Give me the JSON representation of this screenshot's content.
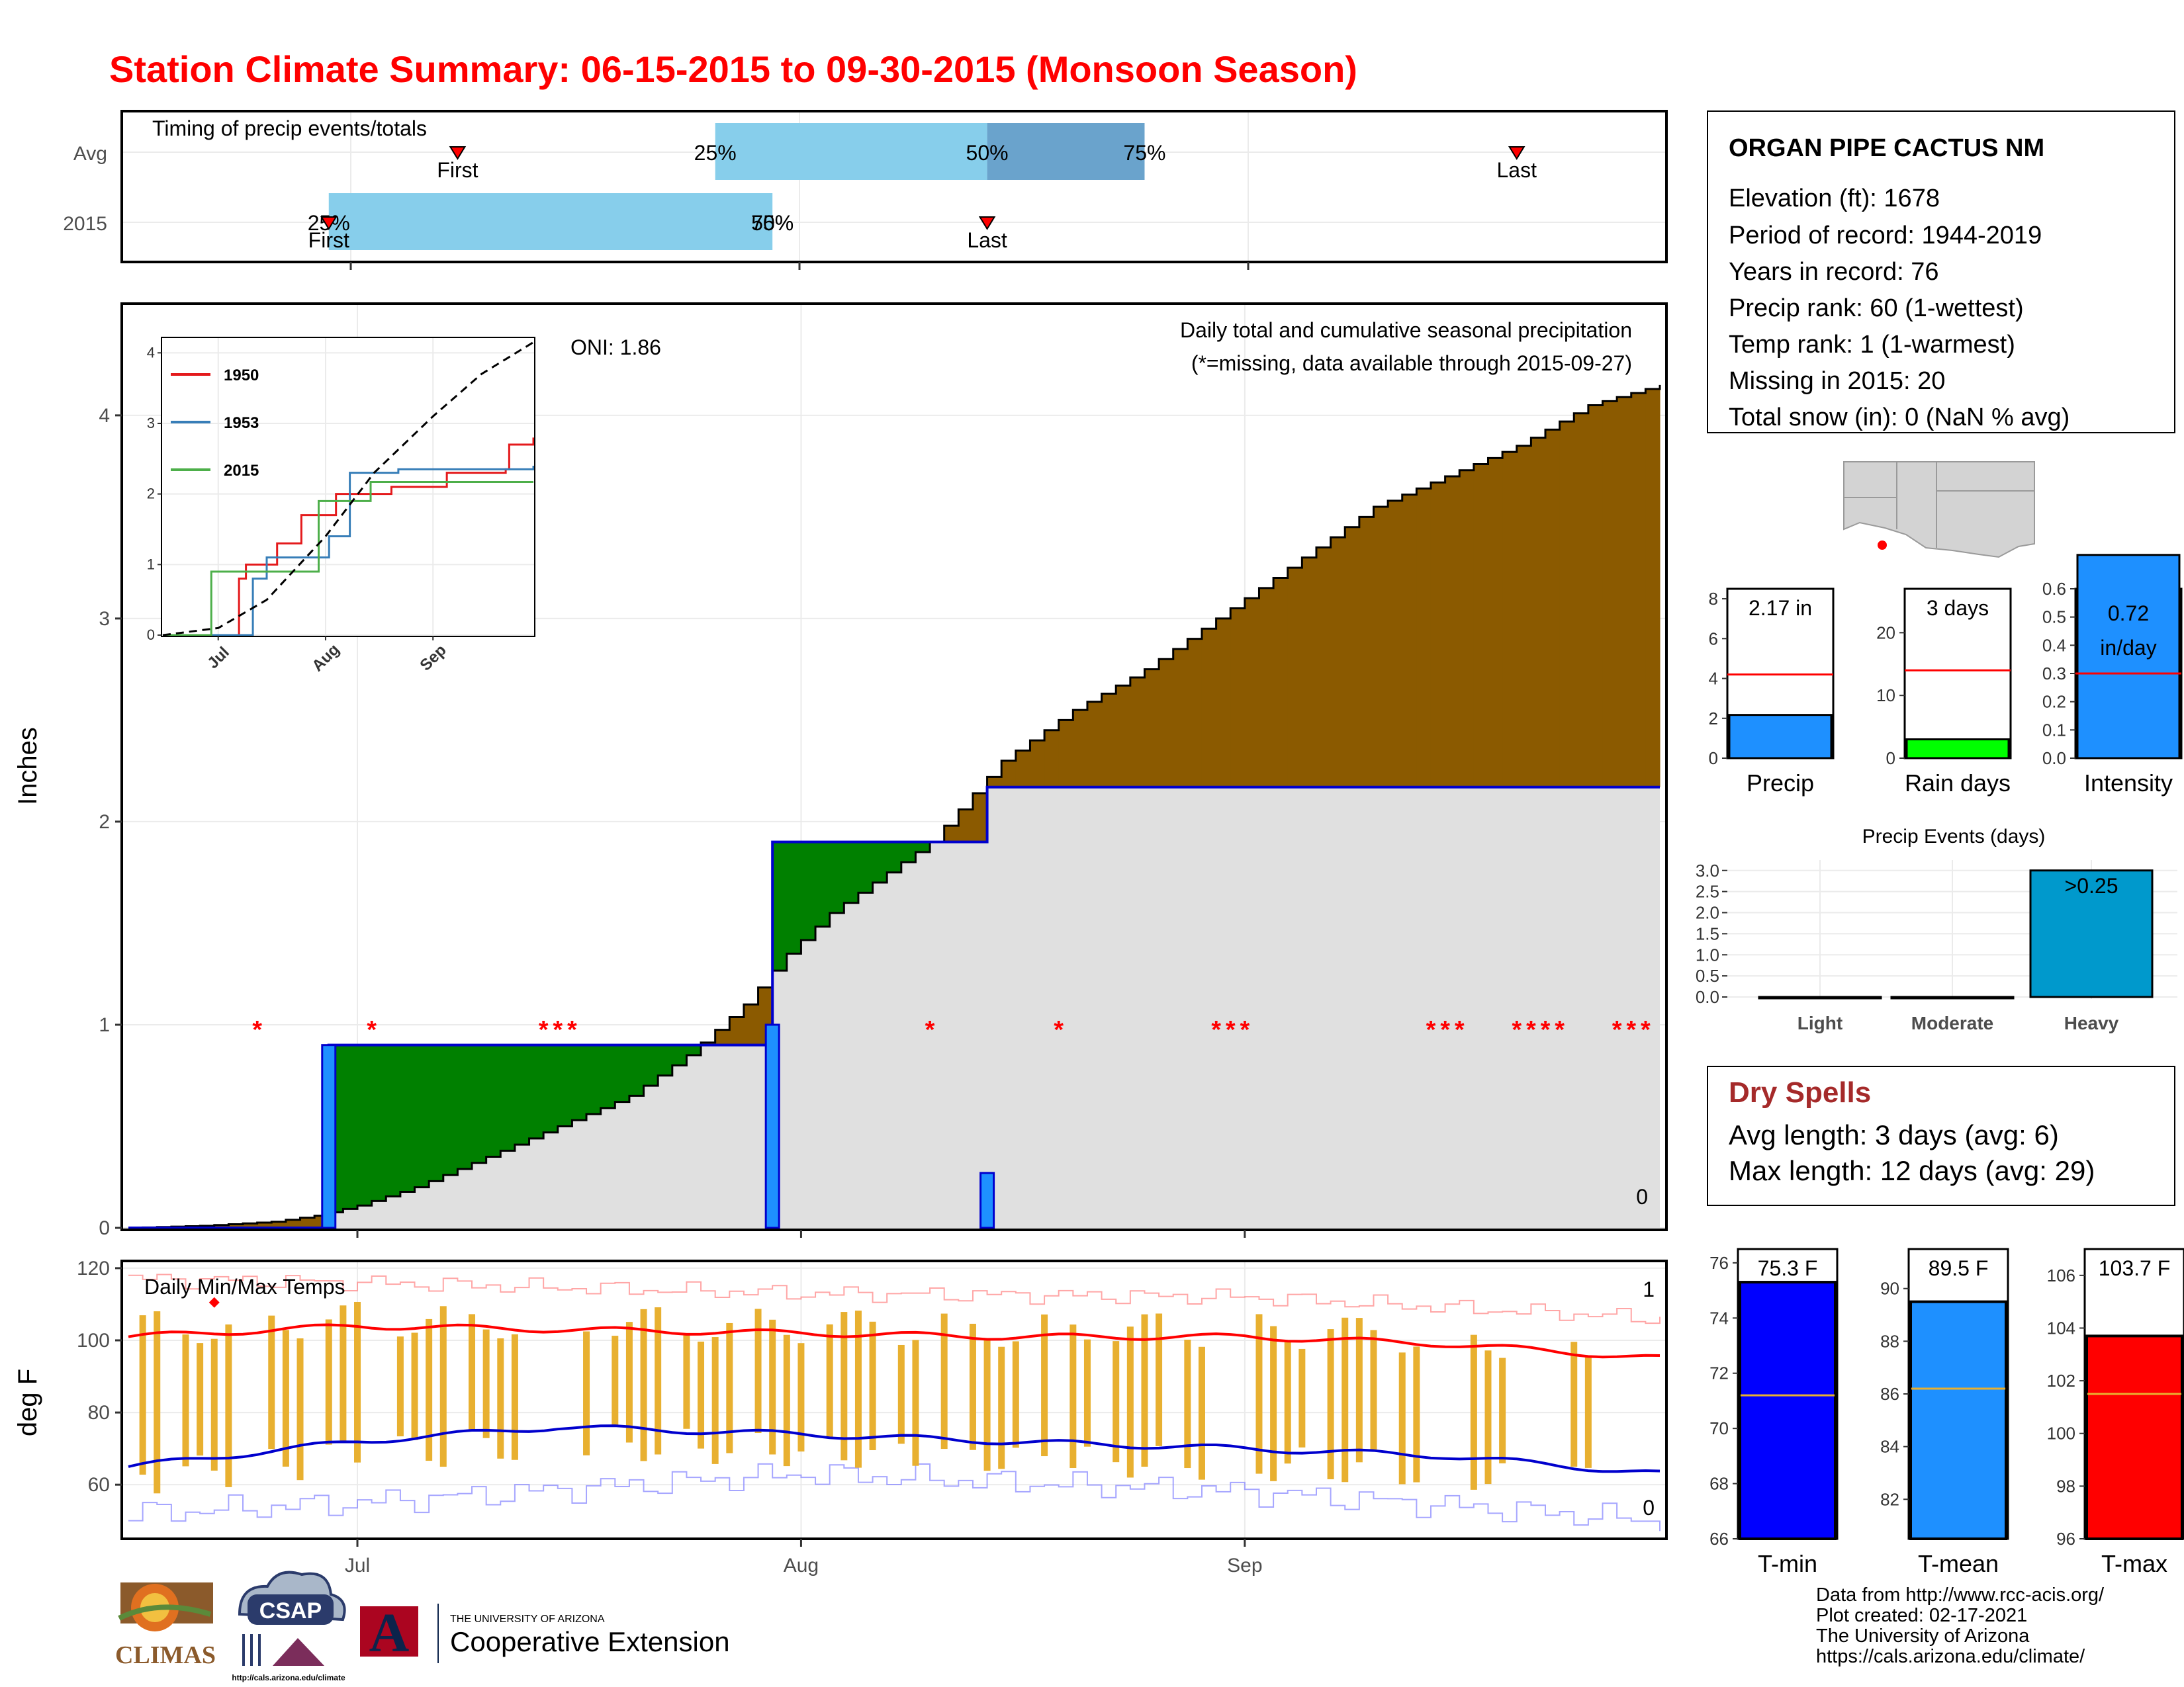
{
  "title": "Station Climate Summary: 06-15-2015 to 09-30-2015 (Monsoon Season)",
  "colors": {
    "title": "#ff0000",
    "avg_area": "#8b5a00",
    "above_avg_area": "#008000",
    "obs_fill": "#e0e0e0",
    "obs_line": "#0000cd",
    "daily_bar": "#1e90ff",
    "missing": "#ff0000",
    "timing_light": "#87ceeb",
    "timing_dark": "#6aa3cc",
    "temp_bar": "#e8b030",
    "tmax_line": "#ff0000",
    "tmin_line": "#0000cd",
    "dry_spells": "#a52a2a"
  },
  "timing": {
    "title": "Timing of precip events/totals",
    "rows": [
      "Avg",
      "2015"
    ],
    "avg": {
      "first_label": "First",
      "last_label": "Last",
      "p25": "25%",
      "p50": "50%",
      "p75": "75%"
    },
    "y2015": {
      "first_label": "First",
      "last_label": "Last",
      "p25": "25%",
      "p50": "50%",
      "p75": "75%"
    }
  },
  "main": {
    "ylabel": "Inches",
    "oni": "ONI: 1.86",
    "subtitle": "Daily total and cumulative seasonal precipitation",
    "missing_note": "(*=missing, data available through 2015-09-27)",
    "zero_count": "0",
    "y_ticks": [
      "0",
      "1",
      "2",
      "3",
      "4"
    ],
    "x_ticks": [
      "Jul",
      "Aug",
      "Sep"
    ]
  },
  "inset": {
    "legend": [
      "1950",
      "1953",
      "2015"
    ],
    "legend_colors": [
      "#e41a1c",
      "#377eb8",
      "#4daf4a"
    ],
    "y_ticks": [
      "0",
      "1",
      "2",
      "3",
      "4"
    ],
    "x_ticks": [
      "Jul",
      "Aug",
      "Sep"
    ]
  },
  "temps": {
    "title": "Daily Min/Max Temps",
    "ylabel": "deg F",
    "y_ticks": [
      "60",
      "80",
      "100",
      "120"
    ],
    "count_high": "1",
    "count_low": "0"
  },
  "station": {
    "name": "ORGAN PIPE CACTUS NM",
    "lines": [
      "Elevation (ft): 1678",
      "Period of record: 1944-2019",
      "Years in record: 76",
      "Precip rank: 60 (1-wettest)",
      "Temp rank: 1 (1-warmest)",
      "Missing in 2015: 20",
      "Total snow (in): 0 (NaN % avg)"
    ]
  },
  "mini_bars": [
    {
      "label": "Precip",
      "value_text": "2.17 in",
      "value": 2.17,
      "avg": 4.2,
      "ymax": 8.5,
      "ticks": [
        "0",
        "2",
        "4",
        "6",
        "8"
      ],
      "tick_values": [
        0,
        2,
        4,
        6,
        8
      ],
      "color": "#1e90ff"
    },
    {
      "label": "Rain days",
      "value_text": "3 days",
      "value": 3,
      "avg": 14,
      "ymax": 27,
      "ticks": [
        "0",
        "10",
        "20"
      ],
      "tick_values": [
        0,
        10,
        20
      ],
      "color": "#00ff00"
    },
    {
      "label": "Intensity",
      "value_text": "0.72 in/day",
      "value_text_lines": [
        "0.72",
        "in/day"
      ],
      "value": 0.72,
      "avg": 0.3,
      "ymax": 0.6,
      "ticks": [
        "0.0",
        "0.1",
        "0.2",
        "0.3",
        "0.4",
        "0.5",
        "0.6"
      ],
      "tick_values": [
        0,
        0.1,
        0.2,
        0.3,
        0.4,
        0.5,
        0.6
      ],
      "color": "#1e90ff"
    }
  ],
  "precip_events": {
    "title": "Precip Events (days)",
    "categories": [
      "Light",
      "Moderate",
      "Heavy"
    ],
    "values": [
      0,
      0,
      3
    ],
    "bar_label": ">0.25",
    "y_ticks": [
      "0.0",
      "0.5",
      "1.0",
      "1.5",
      "2.0",
      "2.5",
      "3.0"
    ]
  },
  "dry_spells": {
    "title": "Dry Spells",
    "avg_line": "Avg length: 3 days (avg: 6)",
    "max_line": "Max length: 12 days (avg: 29)"
  },
  "temp_bars": [
    {
      "label": "T-min",
      "value_text": "75.3 F",
      "value": 75.3,
      "avg": 71.2,
      "ymin": 66,
      "ymax": 76.5,
      "ticks": [
        "66",
        "68",
        "70",
        "72",
        "74",
        "76"
      ],
      "tick_values": [
        66,
        68,
        70,
        72,
        74,
        76
      ],
      "color": "#0000ff"
    },
    {
      "label": "T-mean",
      "value_text": "89.5 F",
      "value": 89.5,
      "avg": 86.2,
      "ymin": 80.5,
      "ymax": 91.5,
      "ticks": [
        "82",
        "84",
        "86",
        "88",
        "90"
      ],
      "tick_values": [
        82,
        84,
        86,
        88,
        90
      ],
      "color": "#1e90ff"
    },
    {
      "label": "T-max",
      "value_text": "103.7 F",
      "value": 103.7,
      "avg": 101.5,
      "ymin": 96,
      "ymax": 107,
      "ticks": [
        "96",
        "98",
        "100",
        "102",
        "104",
        "106"
      ],
      "tick_values": [
        96,
        98,
        100,
        102,
        104,
        106
      ],
      "color": "#ff0000"
    }
  ],
  "footer": {
    "lines": [
      "Data from http://www.rcc-acis.org/",
      "Plot created: 02-17-2021",
      "The University of Arizona",
      "https://cals.arizona.edu/climate/"
    ],
    "logo_climas": "CLIMAS",
    "logo_csap": "CSAP",
    "logo_csap_url": "http://cals.arizona.edu/climate",
    "logo_ua_small": "THE UNIVERSITY OF ARIZONA",
    "logo_ua_big": "Cooperative Extension",
    "logo_ua_letter": "A"
  },
  "chart_data": [
    {
      "type": "area",
      "title": "Daily total and cumulative seasonal precipitation",
      "ylabel": "Inches",
      "ylim": [
        0,
        4.55
      ],
      "x_range": [
        "2015-06-15",
        "2015-09-30"
      ],
      "x_ticks": [
        "Jul",
        "Aug",
        "Sep"
      ],
      "series": [
        {
          "name": "Avg cumulative",
          "kind": "step",
          "x": [
            "2015-06-15",
            "2015-06-20",
            "2015-06-25",
            "2015-06-28",
            "2015-07-01",
            "2015-07-05",
            "2015-07-10",
            "2015-07-15",
            "2015-07-20",
            "2015-07-24",
            "2015-07-28",
            "2015-07-31",
            "2015-08-03",
            "2015-08-06",
            "2015-08-10",
            "2015-08-15",
            "2015-08-20",
            "2015-08-25",
            "2015-08-30",
            "2015-09-05",
            "2015-09-10",
            "2015-09-15",
            "2015-09-20",
            "2015-09-25",
            "2015-09-30"
          ],
          "y": [
            0.0,
            0.01,
            0.03,
            0.06,
            0.11,
            0.2,
            0.35,
            0.5,
            0.65,
            0.85,
            1.1,
            1.35,
            1.55,
            1.7,
            1.9,
            2.3,
            2.55,
            2.75,
            3.0,
            3.3,
            3.55,
            3.7,
            3.85,
            4.05,
            4.15
          ]
        },
        {
          "name": "2015 cumulative",
          "kind": "step",
          "x": [
            "2015-06-15",
            "2015-06-29",
            "2015-07-30",
            "2015-08-14",
            "2015-09-30"
          ],
          "y": [
            0.0,
            0.9,
            1.9,
            2.17,
            2.17
          ]
        },
        {
          "name": "2015 daily",
          "kind": "bar",
          "x": [
            "2015-06-29",
            "2015-07-30",
            "2015-08-14"
          ],
          "y": [
            0.9,
            1.0,
            0.27
          ]
        }
      ],
      "missing_days": [
        "2015-06-24",
        "2015-07-02",
        "2015-07-14",
        "2015-07-15",
        "2015-07-16",
        "2015-08-10",
        "2015-08-19",
        "2015-08-30",
        "2015-08-31",
        "2015-09-01",
        "2015-09-14",
        "2015-09-15",
        "2015-09-16",
        "2015-09-20",
        "2015-09-21",
        "2015-09-22",
        "2015-09-23",
        "2015-09-27",
        "2015-09-28",
        "2015-09-29"
      ]
    },
    {
      "type": "line",
      "title": "inset",
      "ylim": [
        0,
        4.2
      ],
      "x_ticks": [
        "Jul",
        "Aug",
        "Sep"
      ],
      "series": [
        {
          "name": "1950",
          "x": [
            "2015-06-15",
            "2015-07-05",
            "2015-07-07",
            "2015-07-09",
            "2015-07-18",
            "2015-07-25",
            "2015-08-04",
            "2015-08-20",
            "2015-09-05",
            "2015-09-22",
            "2015-09-23",
            "2015-09-30"
          ],
          "y": [
            0,
            0,
            0.8,
            1.0,
            1.3,
            1.7,
            2.0,
            2.1,
            2.3,
            2.35,
            2.7,
            2.8
          ]
        },
        {
          "name": "1953",
          "x": [
            "2015-06-15",
            "2015-07-09",
            "2015-07-11",
            "2015-07-15",
            "2015-08-02",
            "2015-08-08",
            "2015-08-22",
            "2015-09-30"
          ],
          "y": [
            0,
            0,
            0.8,
            1.1,
            1.4,
            2.3,
            2.35,
            2.4
          ]
        },
        {
          "name": "2015",
          "x": [
            "2015-06-15",
            "2015-06-29",
            "2015-07-30",
            "2015-08-14",
            "2015-09-30"
          ],
          "y": [
            0,
            0.9,
            1.9,
            2.17,
            2.17
          ]
        },
        {
          "name": "Avg",
          "x": [
            "2015-06-15",
            "2015-07-01",
            "2015-07-15",
            "2015-08-01",
            "2015-08-15",
            "2015-09-01",
            "2015-09-15",
            "2015-09-30"
          ],
          "y": [
            0,
            0.1,
            0.5,
            1.4,
            2.3,
            3.1,
            3.7,
            4.15
          ]
        }
      ]
    },
    {
      "type": "line",
      "title": "Daily Min/Max Temps",
      "ylabel": "deg F",
      "ylim": [
        45,
        122
      ],
      "series": [
        {
          "name": "Avg Tmax",
          "x": [
            "2015-06-15",
            "2015-07-01",
            "2015-07-15",
            "2015-08-01",
            "2015-08-15",
            "2015-09-01",
            "2015-09-15",
            "2015-09-30"
          ],
          "y": [
            101,
            104,
            103,
            102,
            101,
            101,
            99,
            95
          ]
        },
        {
          "name": "Avg Tmin",
          "x": [
            "2015-06-15",
            "2015-07-01",
            "2015-07-15",
            "2015-08-01",
            "2015-08-15",
            "2015-09-01",
            "2015-09-15",
            "2015-09-30"
          ],
          "y": [
            65,
            72,
            76,
            74,
            72,
            70,
            68,
            63
          ]
        },
        {
          "name": "Record high",
          "x": [
            "2015-06-15",
            "2015-07-01",
            "2015-08-01",
            "2015-09-01",
            "2015-09-30"
          ],
          "y": [
            117,
            116,
            113,
            112,
            106
          ]
        },
        {
          "name": "Record low",
          "x": [
            "2015-06-15",
            "2015-07-01",
            "2015-08-01",
            "2015-09-01",
            "2015-09-30"
          ],
          "y": [
            52,
            55,
            63,
            58,
            50
          ]
        }
      ],
      "highlight_point": {
        "x": "2015-06-21",
        "y": 110.5
      }
    },
    {
      "type": "bar",
      "title": "Precip Events (days)",
      "categories": [
        "Light",
        "Moderate",
        "Heavy"
      ],
      "values": [
        0,
        0,
        3
      ]
    }
  ]
}
